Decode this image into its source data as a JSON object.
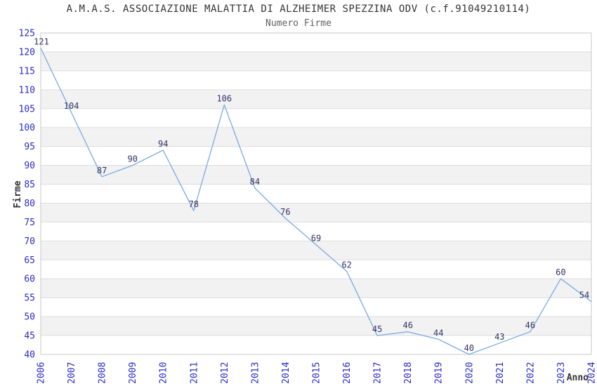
{
  "window": {
    "background": "#ffffff"
  },
  "chart_data": {
    "type": "line",
    "title": "A.M.A.S. ASSOCIAZIONE MALATTIA DI ALZHEIMER SPEZZINA ODV (c.f.91049210114)",
    "subtitle": "Numero Firme",
    "xlabel": "Anno",
    "ylabel": "Firme",
    "categories": [
      "2006",
      "2007",
      "2008",
      "2009",
      "2010",
      "2011",
      "2012",
      "2013",
      "2014",
      "2015",
      "2016",
      "2017",
      "2018",
      "2019",
      "2020",
      "2021",
      "2022",
      "2023",
      "2024"
    ],
    "series": [
      {
        "name": "Numero Firme",
        "values": [
          121,
          104,
          87,
          90,
          94,
          78,
          106,
          84,
          76,
          69,
          62,
          45,
          46,
          44,
          40,
          43,
          46,
          60,
          54
        ]
      }
    ],
    "ylim": [
      40,
      125
    ],
    "ytick_step": 5,
    "grid": true,
    "legend_position": "none",
    "alternating_bands": true,
    "colors": {
      "line": "#79ABE2",
      "tick_label": "#2A2ACC",
      "data_label": "#333366",
      "title": "#333333",
      "subtitle": "#616161",
      "axis_title": "#333333",
      "band_gray": "#F2F2F2",
      "band_white": "#FFFFFF",
      "gridline": "#DDDDDD",
      "border": "#C8C8C8"
    }
  }
}
